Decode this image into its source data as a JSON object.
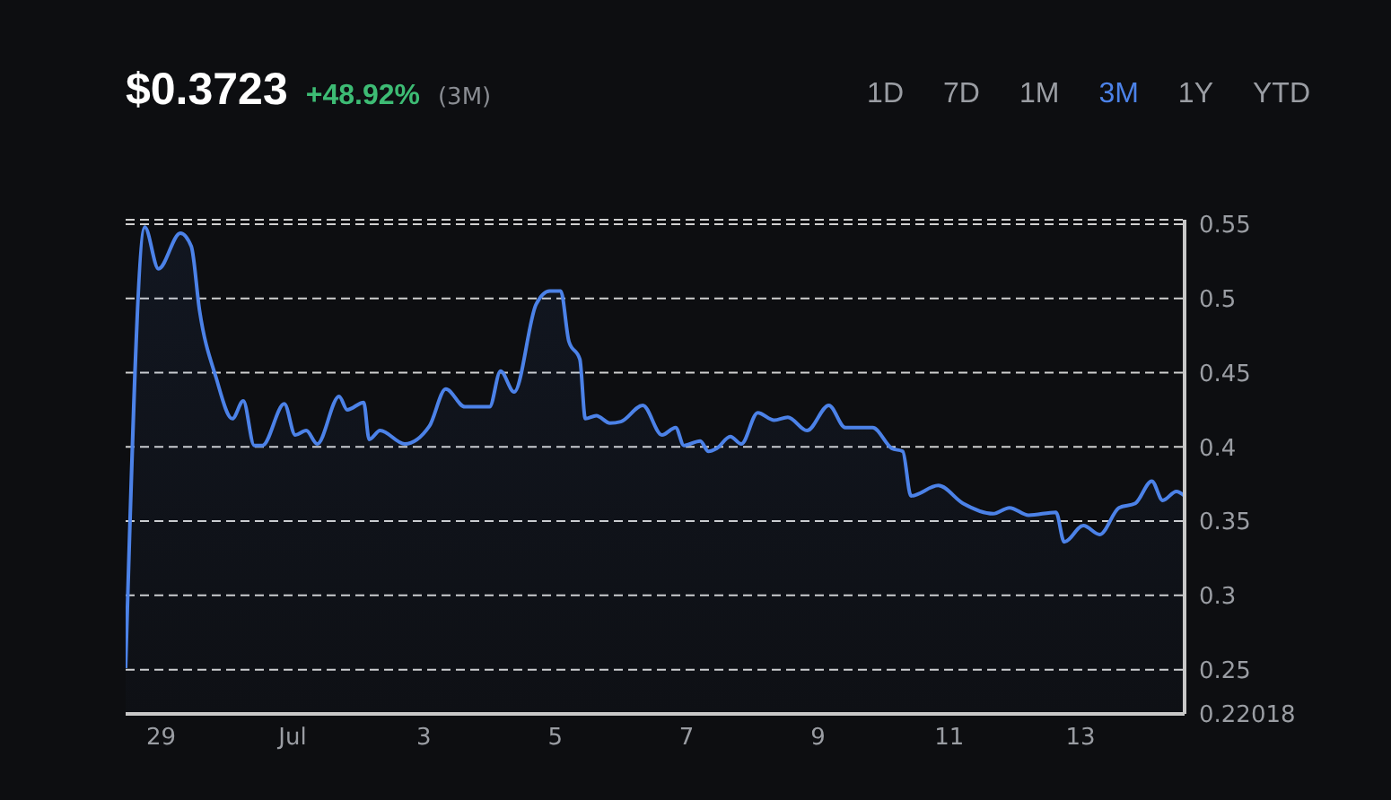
{
  "chart_data": {
    "type": "area",
    "title": "$0.3723",
    "subtitle": "+48.92%",
    "annotations": [
      "(3M)",
      "1D",
      "7D",
      "1M",
      "3M",
      "1Y",
      "YTD"
    ],
    "x": [
      "--06-28T11:00",
      "--06-28T18:00",
      "--06-28T23:00",
      "--06-29T07:00",
      "--06-29T11:00",
      "--06-29T14:00",
      "--06-29T20:00",
      "--06-30T02:00",
      "--06-30T06:00",
      "--06-30T10:00",
      "--06-30T13:00",
      "--06-30T21:00",
      "--07-01T01:00",
      "--07-01T05:00",
      "--07-01T09:00",
      "--07-01T17:00",
      "--07-01T20:00",
      "--07-02T02:00",
      "--07-02T04:00",
      "--07-02T08:00",
      "--07-02T17:00",
      "--07-03T02:00",
      "--07-03T08:00",
      "--07-03T15:00",
      "--07-04T00:00",
      "--07-04T04:00",
      "--07-04T09:00",
      "--07-04T17:00",
      "--07-04T22:00",
      "--07-05T02:00",
      "--07-05T05:00",
      "--07-05T09:00",
      "--07-05T11:00",
      "--07-05T15:00",
      "--07-05T20:00",
      "--07-06T00:00",
      "--07-06T08:00",
      "--07-06T15:00",
      "--07-06T20:00",
      "--07-06T23:00",
      "--07-07T05:00",
      "--07-07T08:00",
      "--07-07T11:00",
      "--07-07T16:00",
      "--07-07T20:00",
      "--07-08T02:00",
      "--07-08T08:00",
      "--07-08T13:00",
      "--07-08T20:00",
      "--07-09T04:00",
      "--07-09T10:00",
      "--07-09T20:00",
      "--07-10T03:00",
      "--07-10T07:00",
      "--07-10T10:00",
      "--07-10T20:00",
      "--07-11T05:00",
      "--07-11T16:00",
      "--07-11T22:00",
      "--07-12T05:00",
      "--07-12T15:00",
      "--07-12T18:00",
      "--07-13T01:00",
      "--07-13T07:00",
      "--07-13T14:00",
      "--07-13T20:00",
      "--07-14T02:00",
      "--07-14T06:00",
      "--07-14T11:00",
      "--07-14T14:00"
    ],
    "series": [
      {
        "color": "#4c82e8",
        "values": [
          0.251,
          0.548,
          0.52,
          0.544,
          0.535,
          0.492,
          0.447,
          0.419,
          0.431,
          0.401,
          0.401,
          0.429,
          0.408,
          0.411,
          0.402,
          0.434,
          0.425,
          0.43,
          0.405,
          0.411,
          0.402,
          0.414,
          0.439,
          0.427,
          0.427,
          0.451,
          0.437,
          0.496,
          0.505,
          0.505,
          0.471,
          0.459,
          0.419,
          0.421,
          0.416,
          0.417,
          0.428,
          0.408,
          0.413,
          0.401,
          0.404,
          0.397,
          0.399,
          0.407,
          0.402,
          0.423,
          0.418,
          0.42,
          0.411,
          0.428,
          0.413,
          0.413,
          0.399,
          0.397,
          0.367,
          0.374,
          0.362,
          0.355,
          0.359,
          0.354,
          0.356,
          0.336,
          0.347,
          0.341,
          0.359,
          0.362,
          0.377,
          0.364,
          0.37,
          0.367
        ]
      }
    ],
    "xlim": [
      "--06-28T11:00",
      "--07-14T14:00"
    ],
    "xticks": [
      {
        "value": "--06-29",
        "label": "29"
      },
      {
        "value": "--07-01",
        "label": "Jul"
      },
      {
        "value": "--07-03",
        "label": "3"
      },
      {
        "value": "--07-05",
        "label": "5"
      },
      {
        "value": "--07-07",
        "label": "7"
      },
      {
        "value": "--07-09",
        "label": "9"
      },
      {
        "value": "--07-11",
        "label": "11"
      },
      {
        "value": "--07-13",
        "label": "13"
      }
    ],
    "ylim": [
      0.22018,
      0.553
    ],
    "yticks": [
      0.22018,
      0.25,
      0.3,
      0.35,
      0.4,
      0.45,
      0.5,
      0.55,
      {
        "value": 0.553,
        "label": null
      }
    ],
    "grid": "y",
    "marker": "none",
    "line_style": "solid"
  }
}
